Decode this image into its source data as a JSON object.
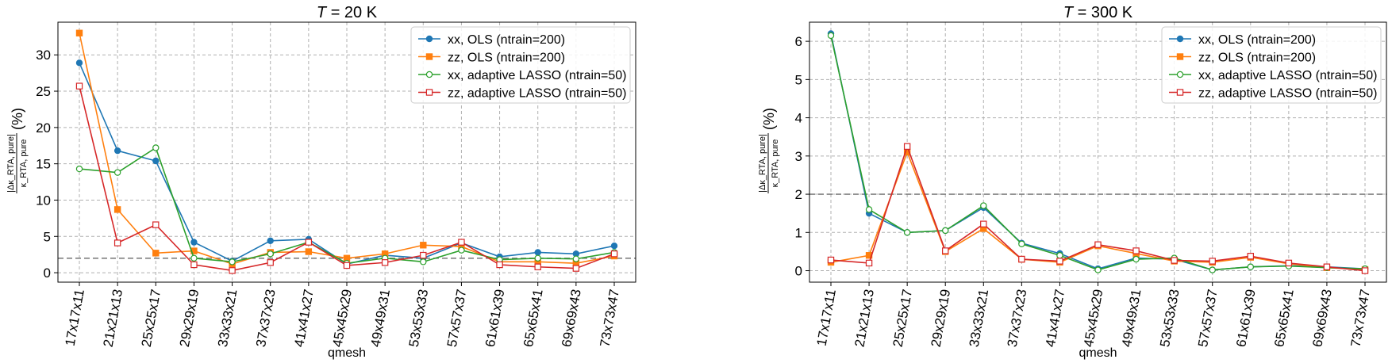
{
  "figure": {
    "colors": {
      "xx_ols": "#1f77b4",
      "zz_ols": "#ff7f0e",
      "xx_lasso": "#2ca02c",
      "zz_lasso": "#d62728",
      "grid": "#b0b0b0",
      "threshold": "#808080"
    }
  },
  "chart_data": [
    {
      "type": "line",
      "title": "T = 20 K",
      "title_italic_symbol": "T",
      "title_rest": " = 20 K",
      "xlabel": "qmesh",
      "ylabel_fraction_top": "|Δκ_RTA, pure|",
      "ylabel_fraction_bottom": "κ_RTA, pure",
      "ylabel_unit": "(%)",
      "categories": [
        "17x17x11",
        "21x21x13",
        "25x25x17",
        "29x29x19",
        "33x33x21",
        "37x37x23",
        "41x41x27",
        "45x45x29",
        "49x49x31",
        "53x53x33",
        "57x57x37",
        "61x61x39",
        "65x65x41",
        "69x69x43",
        "73x73x47"
      ],
      "ylim": [
        -1.3,
        34.5
      ],
      "yticks": [
        0,
        5,
        10,
        15,
        20,
        25,
        30
      ],
      "threshold": 2,
      "grid": true,
      "legend_position": "top-right",
      "series": [
        {
          "name": "xx, OLS (ntrain=200)",
          "color_key": "xx_ols",
          "marker": "circle",
          "filled": true,
          "values": [
            28.9,
            16.8,
            15.4,
            4.2,
            1.6,
            4.4,
            4.6,
            1.2,
            2.4,
            2.0,
            4.1,
            2.2,
            2.8,
            2.6,
            3.7
          ]
        },
        {
          "name": "zz, OLS (ntrain=200)",
          "color_key": "zz_ols",
          "marker": "square",
          "filled": true,
          "values": [
            33.0,
            8.7,
            2.7,
            3.0,
            1.2,
            2.8,
            2.9,
            2.0,
            2.6,
            3.8,
            3.6,
            1.5,
            1.5,
            1.3,
            2.3
          ]
        },
        {
          "name": "xx, adaptive LASSO (ntrain=50)",
          "color_key": "xx_lasso",
          "marker": "circle",
          "filled": false,
          "values": [
            14.3,
            13.8,
            17.2,
            2.0,
            1.5,
            2.6,
            4.2,
            1.3,
            2.0,
            1.5,
            3.1,
            1.8,
            2.0,
            1.9,
            2.8
          ]
        },
        {
          "name": "zz, adaptive LASSO (ntrain=50)",
          "color_key": "zz_lasso",
          "marker": "square",
          "filled": false,
          "values": [
            25.7,
            4.1,
            6.6,
            1.1,
            0.3,
            1.4,
            4.2,
            1.0,
            1.4,
            2.4,
            4.2,
            1.1,
            0.8,
            0.6,
            2.6
          ]
        }
      ]
    },
    {
      "type": "line",
      "title": "T = 300 K",
      "title_italic_symbol": "T",
      "title_rest": " = 300 K",
      "xlabel": "qmesh",
      "ylabel_fraction_top": "|Δκ_RTA, pure|",
      "ylabel_fraction_bottom": "κ_RTA, pure",
      "ylabel_unit": "(%)",
      "categories": [
        "17x17x11",
        "21x21x13",
        "25x25x17",
        "29x29x19",
        "33x33x21",
        "37x37x23",
        "41x41x27",
        "45x45x29",
        "49x49x31",
        "53x53x33",
        "57x57x37",
        "61x61x39",
        "65x65x41",
        "69x69x43",
        "73x73x47"
      ],
      "ylim": [
        -0.3,
        6.5
      ],
      "yticks": [
        0,
        1,
        2,
        3,
        4,
        5,
        6
      ],
      "threshold": 2,
      "grid": true,
      "legend_position": "top-right",
      "series": [
        {
          "name": "xx, OLS (ntrain=200)",
          "color_key": "xx_ols",
          "marker": "circle",
          "filled": true,
          "values": [
            6.2,
            1.5,
            1.0,
            1.05,
            1.65,
            0.72,
            0.45,
            0.05,
            0.33,
            0.3,
            0.02,
            0.1,
            0.13,
            0.1,
            0.05
          ]
        },
        {
          "name": "zz, OLS (ntrain=200)",
          "color_key": "zz_ols",
          "marker": "square",
          "filled": true,
          "values": [
            0.22,
            0.4,
            3.1,
            0.5,
            1.1,
            0.3,
            0.22,
            0.65,
            0.45,
            0.25,
            0.22,
            0.35,
            0.18,
            0.08,
            0.03
          ]
        },
        {
          "name": "xx, adaptive LASSO (ntrain=50)",
          "color_key": "xx_lasso",
          "marker": "circle",
          "filled": false,
          "values": [
            6.15,
            1.6,
            1.0,
            1.05,
            1.7,
            0.7,
            0.4,
            0.02,
            0.3,
            0.33,
            0.02,
            0.1,
            0.12,
            0.08,
            0.05
          ]
        },
        {
          "name": "zz, adaptive LASSO (ntrain=50)",
          "color_key": "zz_lasso",
          "marker": "square",
          "filled": false,
          "values": [
            0.28,
            0.2,
            3.25,
            0.52,
            1.22,
            0.3,
            0.25,
            0.68,
            0.52,
            0.27,
            0.25,
            0.38,
            0.2,
            0.1,
            0.0
          ]
        }
      ]
    }
  ]
}
